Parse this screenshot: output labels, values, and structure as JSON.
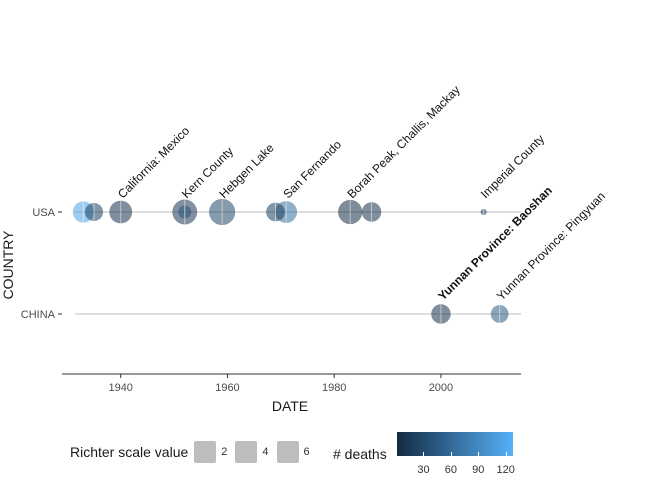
{
  "chart_data": {
    "type": "scatter",
    "xlabel": "DATE",
    "ylabel": "COUNTRY",
    "categories": [
      "CHINA",
      "USA"
    ],
    "xlim": [
      1929,
      2015
    ],
    "x_ticks": [
      1940,
      1960,
      1980,
      2000
    ],
    "grid": false,
    "points": [
      {
        "country": "USA",
        "date": 1933,
        "richter": 6.4,
        "deaths": 115,
        "label": ""
      },
      {
        "country": "USA",
        "date": 1935,
        "richter": 5.5,
        "deaths": 20,
        "label": ""
      },
      {
        "country": "USA",
        "date": 1940,
        "richter": 6.9,
        "deaths": 9,
        "label": "California: Mexico"
      },
      {
        "country": "USA",
        "date": 1952,
        "richter": 7.5,
        "deaths": 12,
        "label": "Kern County"
      },
      {
        "country": "USA",
        "date": 1952,
        "richter": 4.0,
        "deaths": 40,
        "label": ""
      },
      {
        "country": "USA",
        "date": 1959,
        "richter": 7.9,
        "deaths": 28,
        "label": "Hebgen Lake"
      },
      {
        "country": "USA",
        "date": 1969,
        "richter": 5.7,
        "deaths": 20,
        "label": ""
      },
      {
        "country": "USA",
        "date": 1971,
        "richter": 6.6,
        "deaths": 65,
        "label": "San Fernando"
      },
      {
        "country": "USA",
        "date": 1983,
        "richter": 7.3,
        "deaths": 2,
        "label": "Borah Peak, Challis, Mackay"
      },
      {
        "country": "USA",
        "date": 1987,
        "richter": 5.9,
        "deaths": 8,
        "label": ""
      },
      {
        "country": "USA",
        "date": 2008,
        "richter": 2.0,
        "deaths": 22,
        "label": "Imperial County"
      },
      {
        "country": "CHINA",
        "date": 2000,
        "richter": 5.9,
        "deaths": 7,
        "label": "Yunnan Province:  Baoshan"
      },
      {
        "country": "CHINA",
        "date": 2011,
        "richter": 5.4,
        "deaths": 45,
        "label": "Yunnan Province:  Pingyuan"
      }
    ],
    "legends": {
      "size": {
        "title": "Richter scale value",
        "entries": [
          "2",
          "4",
          "6"
        ]
      },
      "color": {
        "title": "# deaths",
        "ticks": [
          "30",
          "60",
          "90",
          "120"
        ],
        "range": [
          1,
          128
        ],
        "low_color": "#132b43",
        "high_color": "#56b1f7"
      }
    }
  }
}
